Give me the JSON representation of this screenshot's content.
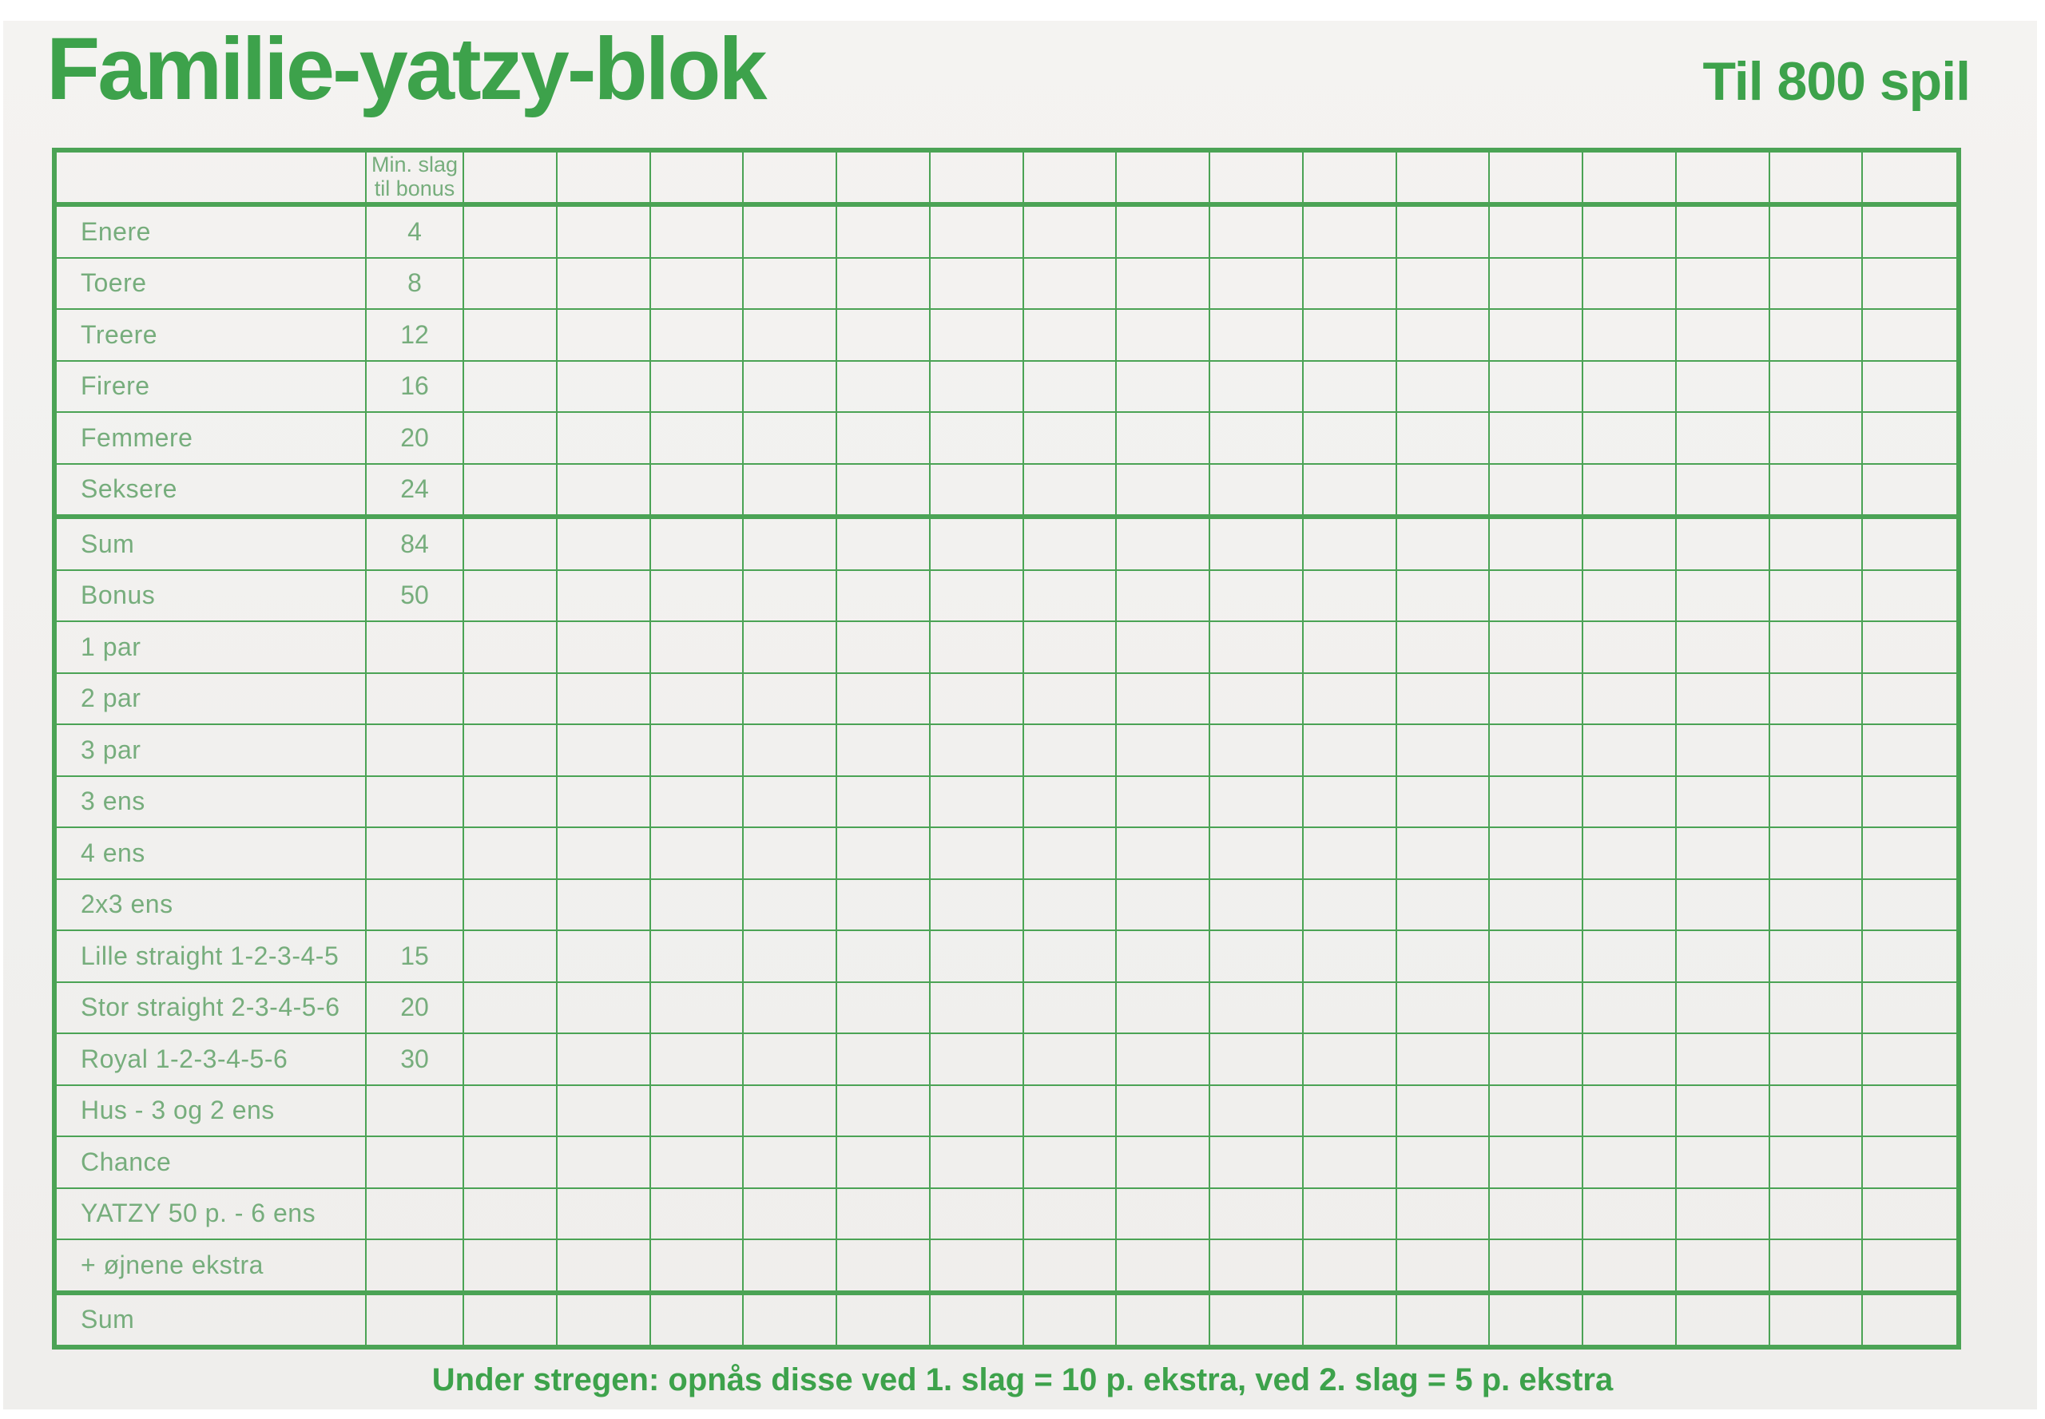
{
  "page": {
    "title": "Familie-yatzy-blok",
    "subtitle": "Til 800 spil",
    "footer": "Under stregen: opnås disse ved 1. slag = 10 p. ekstra, ved 2. slag = 5 p. ekstra"
  },
  "colors": {
    "line": "#4ba355",
    "title": "#3da24b",
    "label": "#76ad7c",
    "paper": "#f2f1ee",
    "page_edge": "#ffffff"
  },
  "table": {
    "bonus_header_line1": "Min. slag",
    "bonus_header_line2": "til bonus",
    "score_column_count": 16,
    "rows": [
      {
        "label": "Enere",
        "bonus": "4",
        "thick_bottom": false
      },
      {
        "label": "Toere",
        "bonus": "8",
        "thick_bottom": false
      },
      {
        "label": "Treere",
        "bonus": "12",
        "thick_bottom": false
      },
      {
        "label": "Firere",
        "bonus": "16",
        "thick_bottom": false
      },
      {
        "label": "Femmere",
        "bonus": "20",
        "thick_bottom": false
      },
      {
        "label": "Seksere",
        "bonus": "24",
        "thick_bottom": true
      },
      {
        "label": "Sum",
        "bonus": "84",
        "thick_bottom": false
      },
      {
        "label": "Bonus",
        "bonus": "50",
        "thick_bottom": false
      },
      {
        "label": "1 par",
        "bonus": "",
        "thick_bottom": false
      },
      {
        "label": "2 par",
        "bonus": "",
        "thick_bottom": false
      },
      {
        "label": "3 par",
        "bonus": "",
        "thick_bottom": false
      },
      {
        "label": "3 ens",
        "bonus": "",
        "thick_bottom": false
      },
      {
        "label": "4 ens",
        "bonus": "",
        "thick_bottom": false
      },
      {
        "label": "2x3 ens",
        "bonus": "",
        "thick_bottom": false
      },
      {
        "label": "Lille straight 1-2-3-4-5",
        "bonus": "15",
        "thick_bottom": false
      },
      {
        "label": "Stor straight 2-3-4-5-6",
        "bonus": "20",
        "thick_bottom": false
      },
      {
        "label": "Royal 1-2-3-4-5-6",
        "bonus": "30",
        "thick_bottom": false
      },
      {
        "label": "Hus - 3 og 2 ens",
        "bonus": "",
        "thick_bottom": false
      },
      {
        "label": "Chance",
        "bonus": "",
        "thick_bottom": false
      },
      {
        "label": "YATZY 50 p. - 6 ens",
        "bonus": "",
        "thick_bottom": false
      },
      {
        "label": "+ øjnene ekstra",
        "bonus": "",
        "thick_bottom": true
      },
      {
        "label": "Sum",
        "bonus": "",
        "thick_bottom": false
      }
    ]
  }
}
